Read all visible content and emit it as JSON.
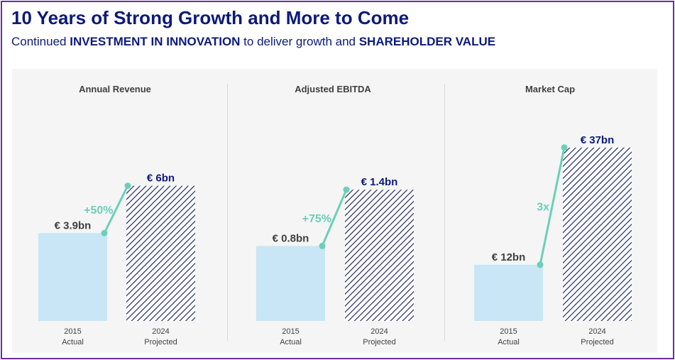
{
  "header": {
    "title": "10 Years of Strong Growth and More to Come",
    "subtitle_parts": [
      "Continued ",
      "INVESTMENT IN INNOVATION",
      " to deliver growth and ",
      "SHAREHOLDER VALUE"
    ]
  },
  "colors": {
    "title": "#0c1a7a",
    "actual_bar": "#c8e6f5",
    "projected_bar_stripes": "#1f2a66",
    "growth_line": "#6ccfb7",
    "frame": "#6a2ea0"
  },
  "chart_data": [
    {
      "type": "bar",
      "title": "Annual Revenue",
      "categories": [
        "2015",
        "2024"
      ],
      "sublabels": [
        "Actual",
        "Projected"
      ],
      "values": [
        3.9,
        6
      ],
      "value_labels": [
        "€ 3.9bn",
        "€ 6bn"
      ],
      "growth_label": "+50%",
      "unit": "€ bn",
      "ylim": [
        0,
        10.4
      ]
    },
    {
      "type": "bar",
      "title": "Adjusted EBITDA",
      "categories": [
        "2015",
        "2024"
      ],
      "sublabels": [
        "Actual",
        "Projected"
      ],
      "values": [
        0.8,
        1.4
      ],
      "value_labels": [
        "€ 0.8bn",
        "€ 1.4bn"
      ],
      "growth_label": "+75%",
      "unit": "€ bn",
      "ylim": [
        0,
        2.5
      ]
    },
    {
      "type": "bar",
      "title": "Market Cap",
      "categories": [
        "2015",
        "2024"
      ],
      "sublabels": [
        "Actual",
        "Projected"
      ],
      "values": [
        12,
        37
      ],
      "value_labels": [
        "€ 12bn",
        "€ 37bn"
      ],
      "growth_label": "3x",
      "unit": "€ bn",
      "ylim": [
        0,
        50
      ]
    }
  ]
}
